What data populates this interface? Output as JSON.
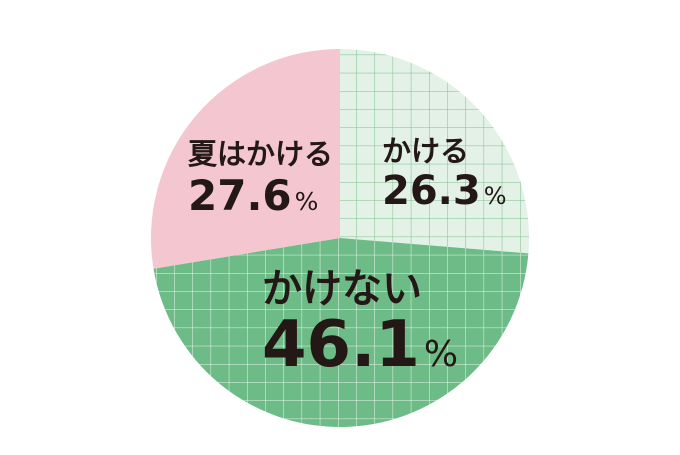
{
  "chart_data": {
    "type": "pie",
    "slices": [
      {
        "label": "かける",
        "value": 26.3,
        "display": "26.3",
        "unit": "%",
        "color": "#e3f1e6",
        "grid_color": "#7cc08c"
      },
      {
        "label": "かけない",
        "value": 46.1,
        "display": "46.1",
        "unit": "%",
        "color": "#6dbb87",
        "grid_color": "#eaf6ec"
      },
      {
        "label": "夏はかける",
        "value": 27.6,
        "display": "27.6",
        "unit": "%",
        "color": "#f4c6cf",
        "grid_color": null
      }
    ],
    "title": "",
    "legend": "none"
  }
}
